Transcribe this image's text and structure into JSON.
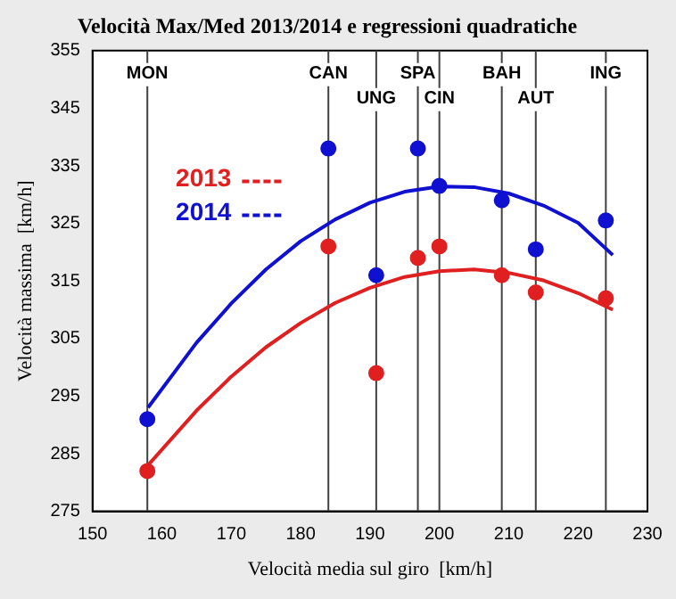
{
  "chart_data": {
    "type": "scatter",
    "title": "Velocità Max/Med 2013/2014 e regressioni quadratiche",
    "xlabel": "Velocità media sul giro  [km/h]",
    "ylabel": "Velocità massima  [km/h]",
    "xlim": [
      150,
      230
    ],
    "xticks": [
      150,
      160,
      170,
      180,
      190,
      200,
      210,
      220,
      230
    ],
    "ylim": [
      275,
      355
    ],
    "yticks": [
      275,
      285,
      295,
      305,
      315,
      325,
      335,
      345,
      355
    ],
    "marker": "circle",
    "legend": "left",
    "ref_lines": [
      {
        "axis": "x",
        "value": 157.9,
        "label": "MON",
        "color": "#404040"
      },
      {
        "axis": "x",
        "value": 184,
        "label": "CAN",
        "color": "#404040"
      },
      {
        "axis": "x",
        "value": 190.9,
        "label": "UNG",
        "color": "#404040"
      },
      {
        "axis": "x",
        "value": 196.9,
        "label": "SPA",
        "color": "#404040"
      },
      {
        "axis": "x",
        "value": 200,
        "label": "CIN",
        "color": "#404040"
      },
      {
        "axis": "x",
        "value": 209,
        "label": "BAH",
        "color": "#404040"
      },
      {
        "axis": "x",
        "value": 213.9,
        "label": "AUT",
        "color": "#404040"
      },
      {
        "axis": "x",
        "value": 224,
        "label": "ING",
        "color": "#404040"
      }
    ],
    "series": [
      {
        "name": "2013",
        "type": "scatter",
        "color": "#e02020",
        "x": [
          157.9,
          184,
          190.9,
          196.9,
          200,
          209,
          213.9,
          224
        ],
        "values": [
          282,
          321,
          299,
          319,
          321,
          316,
          313,
          312
        ]
      },
      {
        "name": "2014",
        "type": "scatter",
        "color": "#1010d0",
        "x": [
          157.9,
          184,
          190.9,
          196.9,
          200,
          209,
          213.9,
          224
        ],
        "values": [
          291,
          338,
          316,
          338,
          331.5,
          329,
          320.5,
          325.5
        ]
      },
      {
        "type": "line",
        "color": "#e02020",
        "marker": "none",
        "x": [
          158,
          165,
          170,
          175,
          180,
          185,
          190,
          195,
          200,
          205,
          210,
          215,
          220,
          225
        ],
        "values": [
          283,
          292.5,
          298.4,
          303.5,
          307.7,
          311.2,
          313.8,
          315.7,
          316.7,
          317,
          316.4,
          315.1,
          312.9,
          310
        ]
      },
      {
        "type": "line",
        "color": "#1010d0",
        "marker": "none",
        "x": [
          158,
          165,
          170,
          175,
          180,
          185,
          190,
          195,
          200,
          205,
          210,
          215,
          220,
          225
        ],
        "values": [
          293,
          304.3,
          311.1,
          317,
          321.9,
          325.7,
          328.6,
          330.5,
          331.4,
          331.3,
          330.2,
          328.1,
          325.1,
          319.5
        ]
      }
    ]
  }
}
